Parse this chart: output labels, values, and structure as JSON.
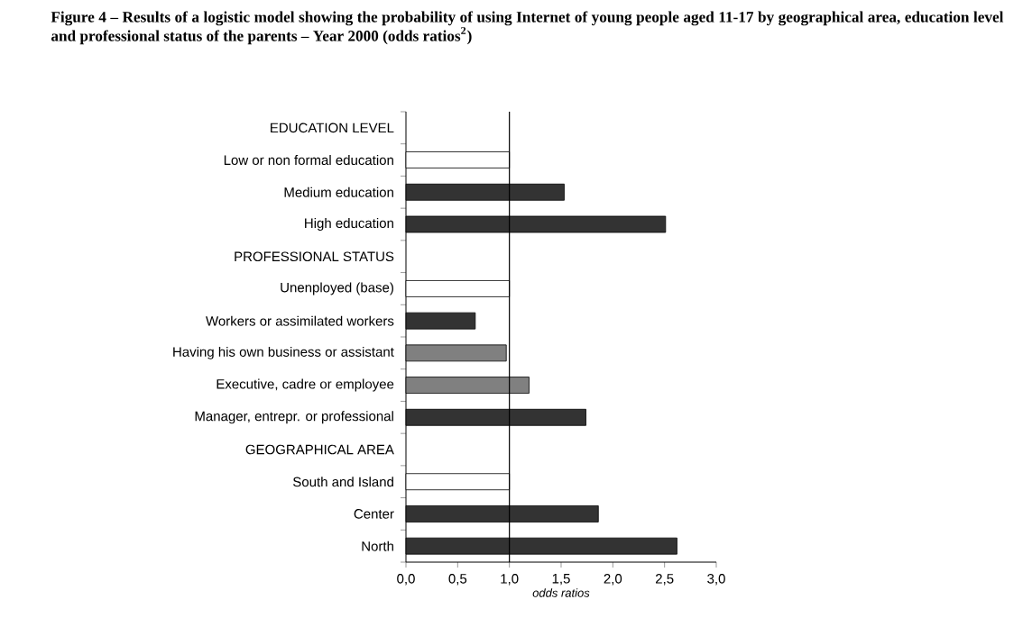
{
  "chart_data": {
    "type": "bar",
    "orientation": "horizontal",
    "title": "Figure 4 – Results of a logistic model showing the probability of using Internet of young people aged 11-17 by geographical area, education level and professional status of the parents – Year 2000 (odds ratios$^{2}$)",
    "xlabel": "odds ratios",
    "categories": [
      "EDUCATION LEVEL",
      "Low or non formal education",
      "Medium education",
      "High education",
      "PROFESSIONAL STATUS",
      "Unenployed (base)",
      "Workers or assimilated workers",
      "Having his own business or assistant",
      "Executive, cadre or employee",
      "Manager, entrepr. or professional",
      "GEOGRAPHICAL AREA",
      "South and Island",
      "Center",
      "North"
    ],
    "values": [
      null,
      1.0,
      1.53,
      2.51,
      null,
      1.0,
      0.67,
      0.97,
      1.19,
      1.74,
      null,
      1.0,
      1.86,
      2.62
    ],
    "colors": [
      "#ffffff",
      "#ffffff",
      "#333333",
      "#333333",
      "#ffffff",
      "#ffffff",
      "#333333",
      "#808080",
      "#808080",
      "#333333",
      "#ffffff",
      "#ffffff",
      "#333333",
      "#333333"
    ],
    "xlim": [
      0,
      3
    ],
    "xticks": [
      {
        "value": 0,
        "label": "0,0"
      },
      {
        "value": 0.5,
        "label": "0,5"
      },
      {
        "value": 1,
        "label": "1,0"
      },
      {
        "value": 1.5,
        "label": "1,5"
      },
      {
        "value": 2,
        "label": "2,0"
      },
      {
        "value": 2.5,
        "label": "2,5"
      },
      {
        "value": 3,
        "label": "3,0"
      }
    ],
    "ref_lines": [
      {
        "axis": "x",
        "value": 1,
        "label": null
      }
    ]
  }
}
